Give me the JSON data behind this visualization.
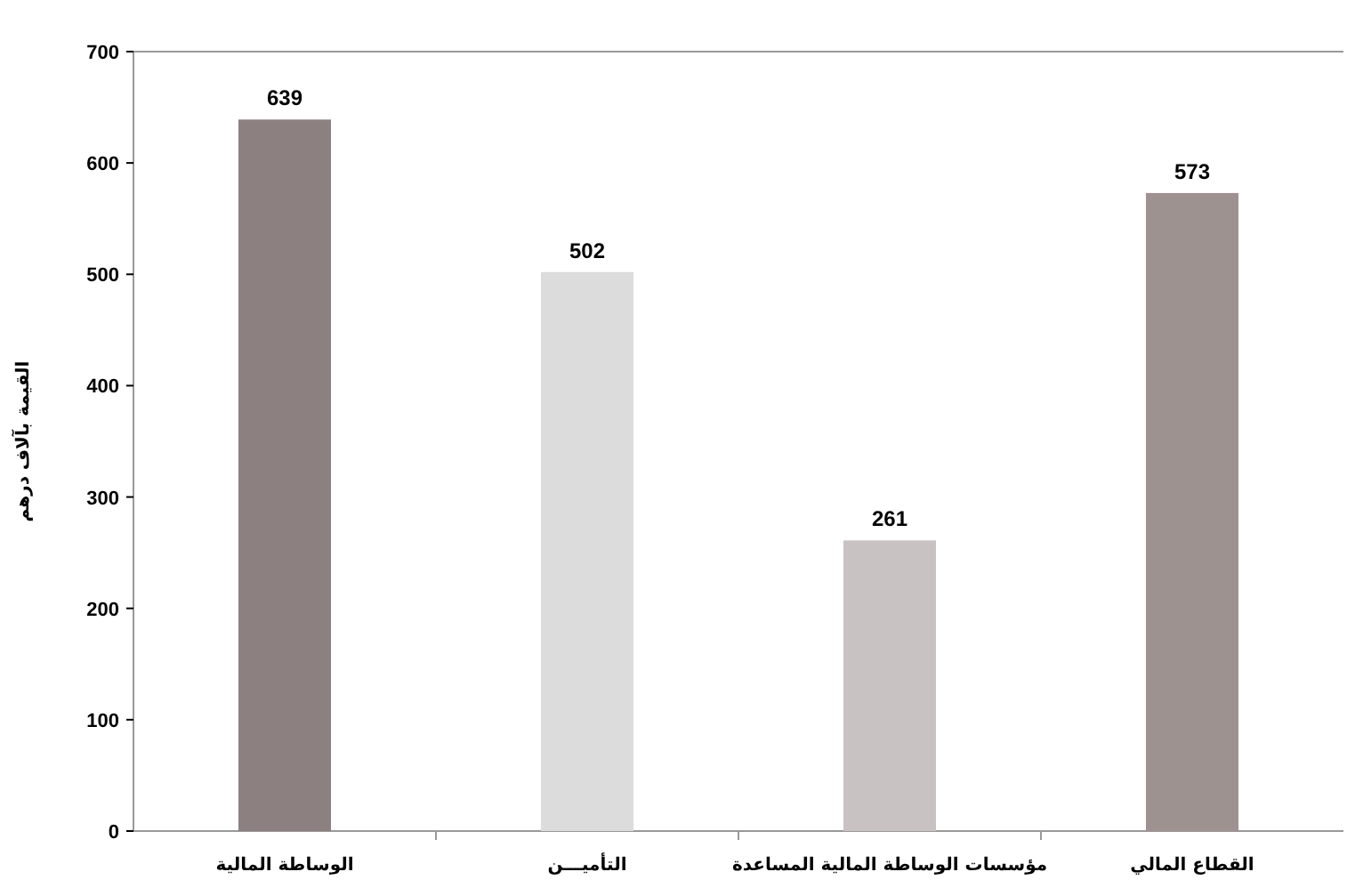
{
  "chart_data": {
    "type": "bar",
    "ylabel": "القيمة بآلاف درهم",
    "categories": [
      "الوساطة المالية",
      "التأميـــن",
      "مؤسسات الوساطة المالية المساعدة",
      "القطاع المالي"
    ],
    "values": [
      639,
      502,
      261,
      573
    ],
    "colors": [
      "#8c8180",
      "#dcdcdc",
      "#c8c2c2",
      "#9e9291"
    ],
    "ylim": [
      0,
      700
    ],
    "yticks": [
      0,
      100,
      200,
      300,
      400,
      500,
      600,
      700
    ],
    "data_labels": true
  }
}
